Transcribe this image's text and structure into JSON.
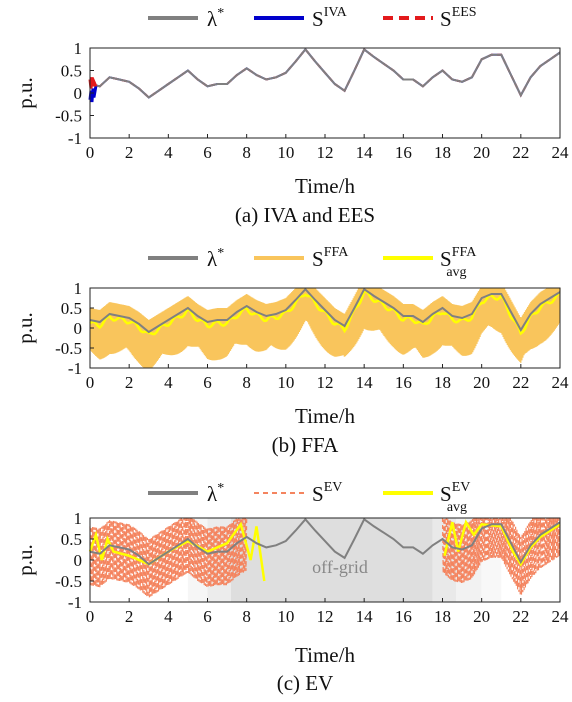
{
  "chart_data": [
    {
      "type": "line",
      "caption": "(a) IVA and EES",
      "xlabel": "Time/h",
      "ylabel": "p.u.",
      "xlim": [
        0,
        24
      ],
      "ylim": [
        -1,
        1
      ],
      "xticks": [
        0,
        2,
        4,
        6,
        8,
        10,
        12,
        14,
        16,
        18,
        20,
        22,
        24
      ],
      "yticks": [
        1,
        0.5,
        0,
        -0.5,
        -1
      ],
      "legend": "top",
      "series": [
        {
          "name": "λ",
          "sup": "*",
          "color": "#808080",
          "style": "solid",
          "x": [
            0,
            0.5,
            1,
            1.5,
            2,
            2.5,
            3,
            3.5,
            4,
            4.5,
            5,
            5.5,
            6,
            6.5,
            7,
            7.5,
            8,
            8.5,
            9,
            9.5,
            10,
            10.5,
            11,
            11.5,
            12,
            12.5,
            13,
            13.5,
            14,
            14.5,
            15,
            15.5,
            16,
            16.5,
            17,
            17.5,
            18,
            18.5,
            19,
            19.5,
            20,
            20.5,
            21,
            21.5,
            22,
            22.5,
            23,
            23.5,
            24
          ],
          "y": [
            0.2,
            0.15,
            0.35,
            0.3,
            0.25,
            0.1,
            -0.1,
            0.05,
            0.2,
            0.35,
            0.5,
            0.3,
            0.15,
            0.2,
            0.2,
            0.4,
            0.55,
            0.4,
            0.3,
            0.35,
            0.45,
            0.7,
            0.97,
            0.7,
            0.45,
            0.2,
            0.05,
            0.5,
            0.97,
            0.8,
            0.65,
            0.5,
            0.3,
            0.3,
            0.15,
            0.35,
            0.5,
            0.3,
            0.25,
            0.35,
            0.75,
            0.85,
            0.85,
            0.4,
            -0.05,
            0.35,
            0.6,
            0.75,
            0.9
          ]
        },
        {
          "name": "S",
          "sup": "IVA",
          "color": "#0000cc",
          "style": "solid",
          "note": "tracks λ* closely, oscillates below zero near t=0",
          "x": [
            0,
            0.05,
            0.1,
            0.15,
            0.2,
            0.3
          ],
          "y": [
            -0.15,
            0.05,
            -0.2,
            0.1,
            -0.1,
            0.15
          ]
        },
        {
          "name": "S",
          "sup": "EES",
          "color": "#e31a1c",
          "style": "dashed",
          "note": "tracks λ* closely, oscillates above near t=0",
          "x": [
            0,
            0.05,
            0.1,
            0.15,
            0.2,
            0.3
          ],
          "y": [
            0.3,
            0.1,
            0.35,
            0.15,
            0.25,
            0.15
          ]
        }
      ]
    },
    {
      "type": "line",
      "caption": "(b) FFA",
      "xlabel": "Time/h",
      "ylabel": "p.u.",
      "xlim": [
        0,
        24
      ],
      "ylim": [
        -1,
        1
      ],
      "xticks": [
        0,
        2,
        4,
        6,
        8,
        10,
        12,
        14,
        16,
        18,
        20,
        22,
        24
      ],
      "yticks": [
        1,
        0.5,
        0,
        -0.5,
        -1
      ],
      "legend": "top",
      "series": [
        {
          "name": "λ",
          "sup": "*",
          "color": "#808080",
          "style": "solid"
        },
        {
          "name": "S",
          "sup": "FFA",
          "color": "#f9c55c",
          "style": "band",
          "note": "fast-oscillating envelope between about -1 and 1"
        },
        {
          "name": "S",
          "sub": "avg",
          "sup": "FFA",
          "color": "#ffff00",
          "style": "solid"
        }
      ]
    },
    {
      "type": "line",
      "caption": "(c) EV",
      "xlabel": "Time/h",
      "ylabel": "p.u.",
      "xlim": [
        0,
        24
      ],
      "ylim": [
        -1,
        1
      ],
      "xticks": [
        0,
        2,
        4,
        6,
        8,
        10,
        12,
        14,
        16,
        18,
        20,
        22,
        24
      ],
      "yticks": [
        1,
        0.5,
        0,
        -0.5,
        -1
      ],
      "legend": "top",
      "annotation": "off-grid",
      "offgrid_regions": [
        [
          5,
          18
        ],
        [
          8,
          18
        ]
      ],
      "series": [
        {
          "name": "λ",
          "sup": "*",
          "color": "#808080",
          "style": "solid"
        },
        {
          "name": "S",
          "sup": "EV",
          "color": "#f4845f",
          "style": "dashed"
        },
        {
          "name": "S",
          "sub": "avg",
          "sup": "EV",
          "color": "#ffff00",
          "style": "solid"
        }
      ]
    }
  ]
}
